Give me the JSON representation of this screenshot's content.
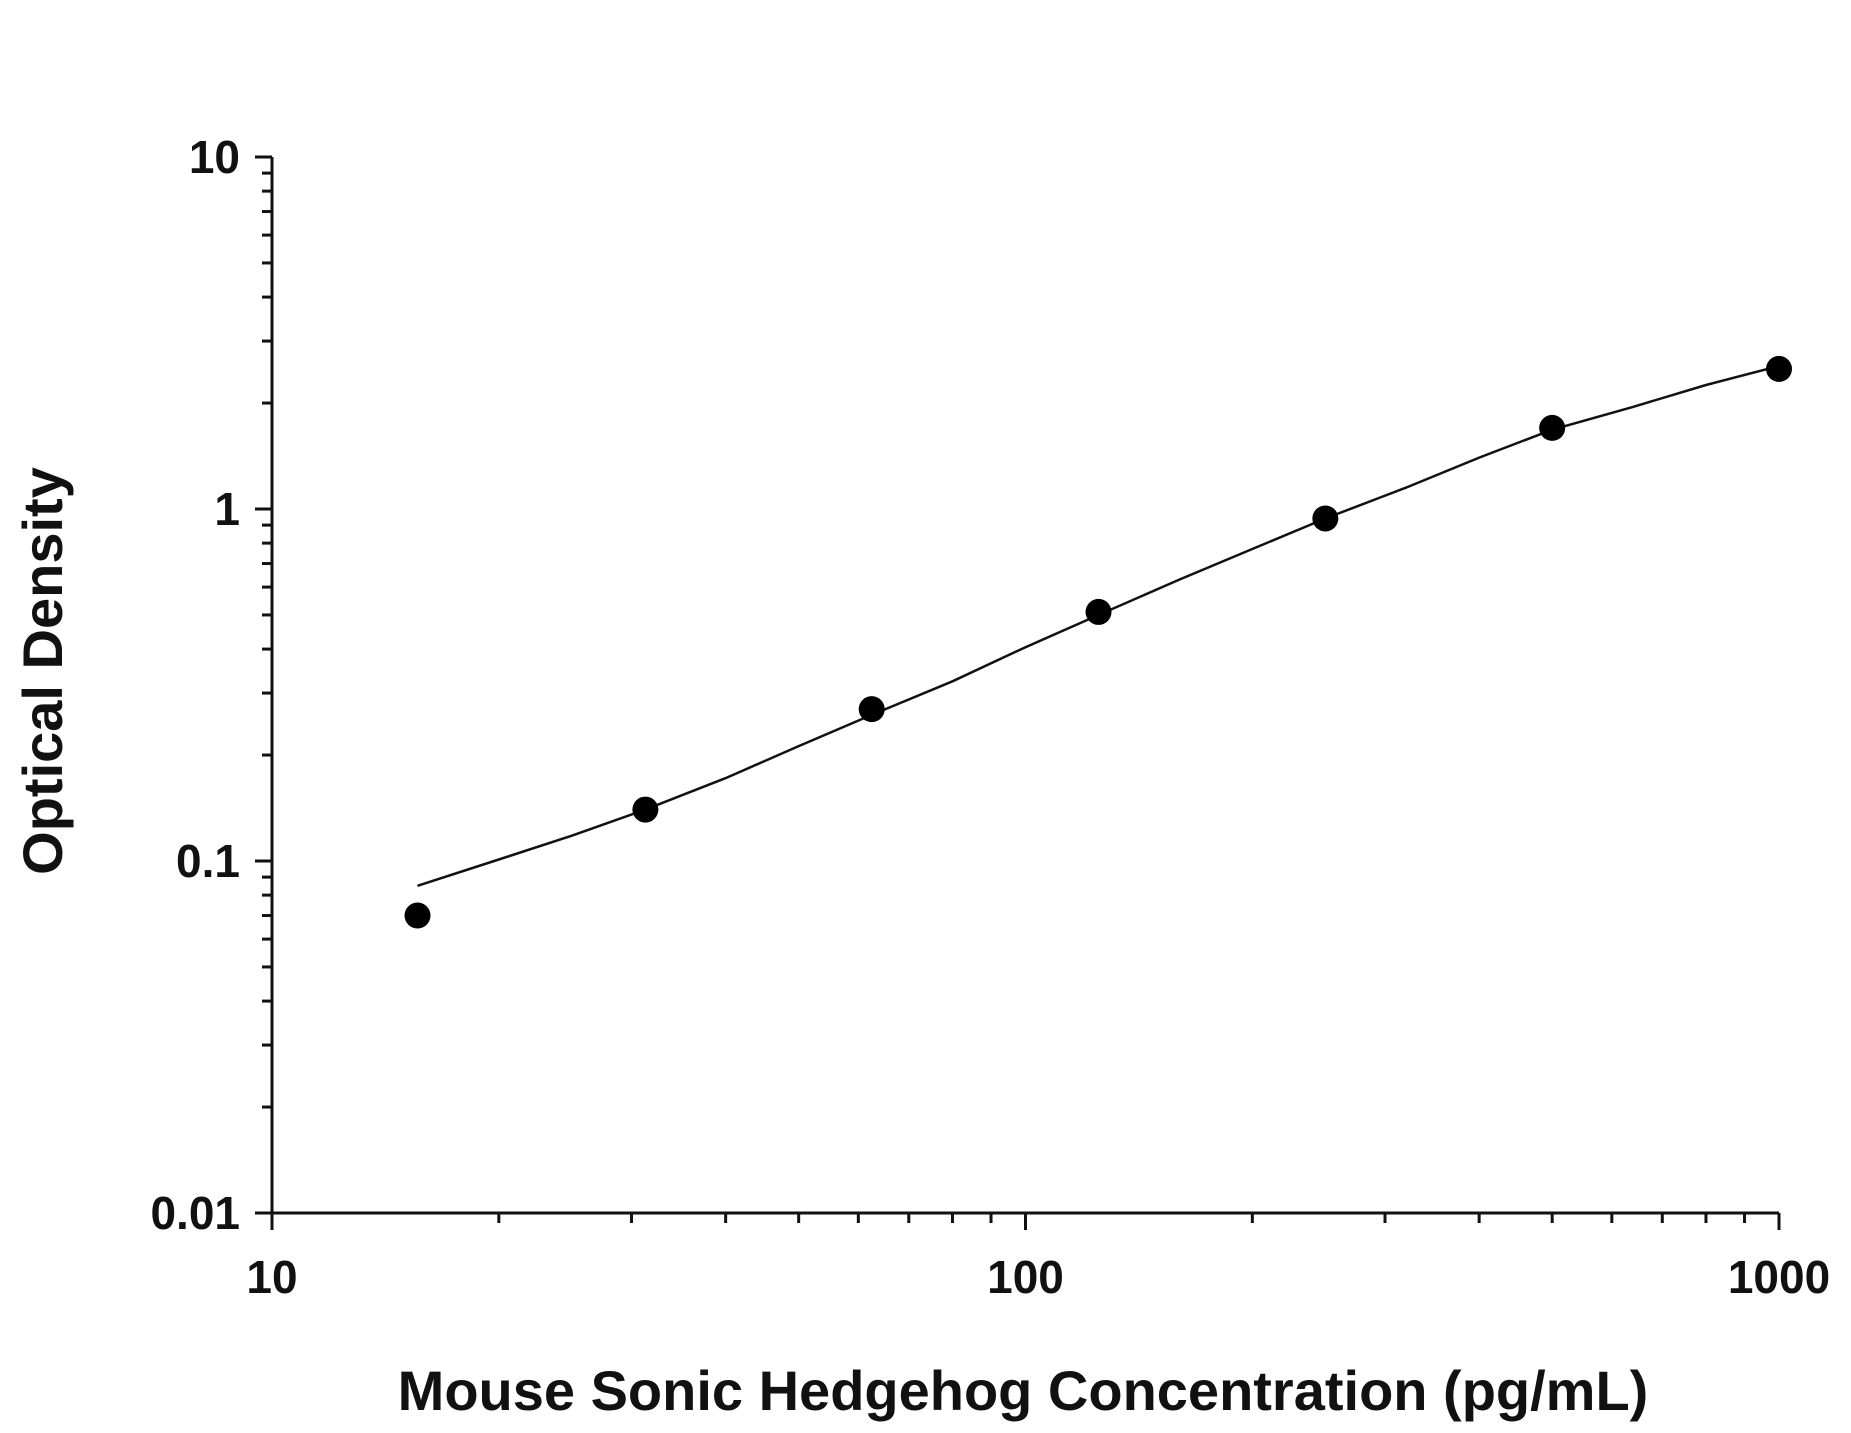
{
  "chart_data": {
    "type": "scatter",
    "title": "",
    "xlabel": "Mouse Sonic Hedgehog Concentration (pg/mL)",
    "ylabel": "Optical Density",
    "xscale": "log",
    "yscale": "log",
    "xlim": [
      10,
      1000
    ],
    "ylim": [
      0.01,
      10
    ],
    "x_tick_labels": [
      "10",
      "100",
      "1000"
    ],
    "y_tick_labels": [
      "0.01",
      "0.1",
      "1",
      "10"
    ],
    "grid": false,
    "legend": "none",
    "series": [
      {
        "x": [
          15.6,
          31.3,
          62.5,
          125,
          250,
          500,
          1000
        ],
        "y": [
          0.07,
          0.14,
          0.27,
          0.51,
          0.94,
          1.7,
          2.5
        ]
      }
    ],
    "fit_curve": {
      "type": "line",
      "x": [
        15.6,
        20,
        25,
        31.3,
        40,
        50,
        62.5,
        80,
        100,
        125,
        160,
        200,
        250,
        320,
        400,
        500,
        640,
        800,
        1000
      ],
      "y": [
        0.085,
        0.101,
        0.118,
        0.14,
        0.172,
        0.212,
        0.26,
        0.324,
        0.405,
        0.5,
        0.63,
        0.77,
        0.94,
        1.15,
        1.4,
        1.68,
        1.95,
        2.25,
        2.55
      ]
    },
    "colors": {
      "marks": "#000000",
      "axes": "#111111",
      "background": "#ffffff"
    }
  }
}
